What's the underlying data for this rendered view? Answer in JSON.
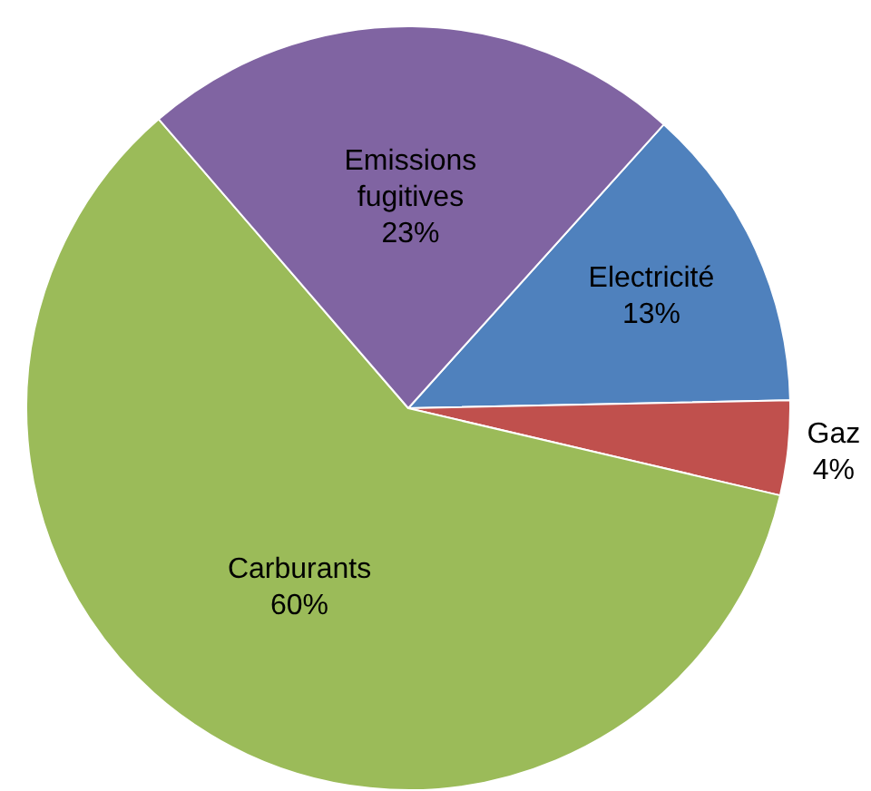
{
  "chart_data": {
    "type": "pie",
    "categories": [
      "Electricité",
      "Gaz",
      "Carburants",
      "Emissions fugitives"
    ],
    "values": [
      13,
      4,
      60,
      23
    ],
    "colors": [
      "#4f81bd",
      "#c0504d",
      "#9bbb59",
      "#8064a2"
    ],
    "value_labels": [
      "13%",
      "4%",
      "60%",
      "23%"
    ],
    "legend": false
  }
}
